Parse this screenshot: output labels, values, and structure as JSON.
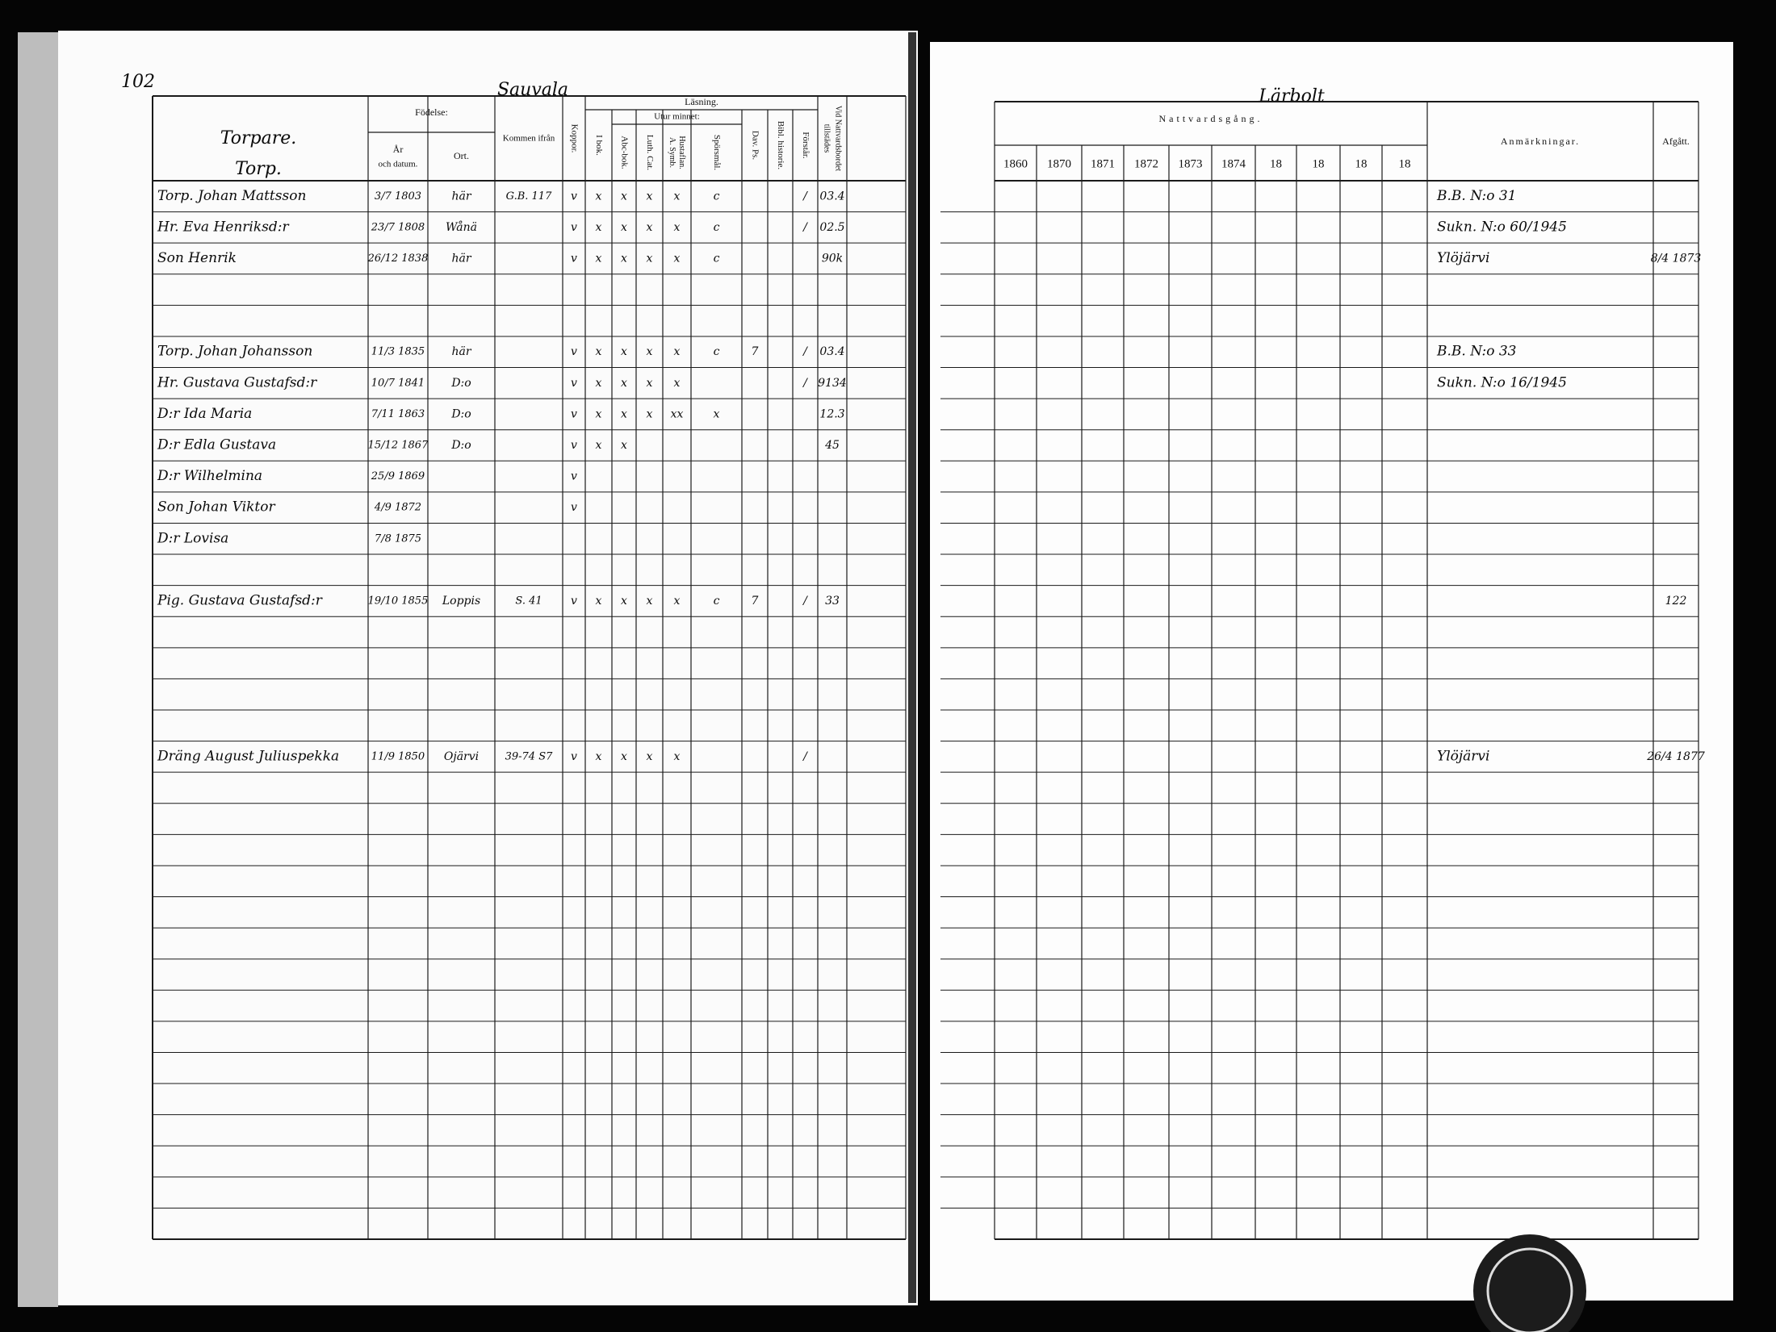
{
  "left_page": {
    "page_number": "102",
    "heading": "Torpare.",
    "subheading": "Torp.",
    "village": "Sauvala",
    "headers": {
      "birth": "Födelse:",
      "birth_date_1": "År",
      "birth_date_2": "och datum.",
      "birth_place": "Ort.",
      "came_from": "Kommen ifrån",
      "smallpox": "Koppor.",
      "reading": "Läsning.",
      "in_book": "I bok.",
      "by_heart": "Utur minnet:",
      "abc": "Abc-bok.",
      "catechism": "Luth. Cat.",
      "symbols_1": "Hustaflan.",
      "symbols_2": "A. Symb.",
      "questions": "Spörsmål.",
      "psalms": "Dav. Ps.",
      "bible_history": "Bibl. historie.",
      "understands": "Förstår.",
      "communion_1": "Vid Nattvardsbordet",
      "communion_2": "tillstädes"
    },
    "rows": [
      {
        "name": "Torp. Johan Mattsson",
        "born": "3/7 1803",
        "place": "här",
        "from": "G.B. 117",
        "smallpox": "v",
        "in_book": "x",
        "abc": "x",
        "catechism": "x",
        "symbols": "x",
        "questions": "c",
        "understands": "/",
        "communion": "03.4"
      },
      {
        "name": "Hr. Eva Henriksd:r",
        "born": "23/7 1808",
        "place": "Wånä",
        "smallpox": "v",
        "in_book": "x",
        "abc": "x",
        "catechism": "x",
        "symbols": "x",
        "questions": "c",
        "understands": "/",
        "communion": "02.5"
      },
      {
        "name": "Son Henrik",
        "born": "26/12 1838",
        "place": "här",
        "smallpox": "v",
        "in_book": "x",
        "abc": "x",
        "catechism": "x",
        "symbols": "x",
        "questions": "c",
        "communion": "90k"
      },
      {
        "name": "Torp. Johan Johansson",
        "born": "11/3 1835",
        "place": "här",
        "smallpox": "v",
        "in_book": "x",
        "abc": "x",
        "catechism": "x",
        "symbols": "x",
        "questions": "c",
        "psalms": "7",
        "understands": "/",
        "communion": "03.4"
      },
      {
        "name": "Hr. Gustava Gustafsd:r",
        "born": "10/7 1841",
        "place": "D:o",
        "smallpox": "v",
        "in_book": "x",
        "abc": "x",
        "catechism": "x",
        "symbols": "x",
        "understands": "/",
        "communion": "9134"
      },
      {
        "name": "D:r Ida Maria",
        "born": "7/11 1863",
        "place": "D:o",
        "smallpox": "v",
        "in_book": "x",
        "abc": "x",
        "catechism": "x",
        "symbols": "xx",
        "questions": "x",
        "communion": "12.3"
      },
      {
        "name": "D:r Edla Gustava",
        "born": "15/12 1867",
        "place": "D:o",
        "smallpox": "v",
        "in_book": "x",
        "abc": "x",
        "communion": "45"
      },
      {
        "name": "D:r Wilhelmina",
        "born": "25/9 1869",
        "smallpox": "v"
      },
      {
        "name": "Son Johan Viktor",
        "born": "4/9 1872",
        "smallpox": "v"
      },
      {
        "name": "D:r Lovisa",
        "born": "7/8 1875"
      },
      {
        "name": "Pig. Gustava Gustafsd:r",
        "born": "19/10 1855",
        "place": "Loppis",
        "from": "S. 41",
        "smallpox": "v",
        "in_book": "x",
        "abc": "x",
        "catechism": "x",
        "symbols": "x",
        "questions": "c",
        "psalms": "7",
        "understands": "/",
        "communion": "33"
      },
      {
        "name": "Dräng August Juliuspekka",
        "born": "11/9 1850",
        "place": "Ojärvi",
        "from": "39-74 S7",
        "smallpox": "v",
        "in_book": "x",
        "abc": "x",
        "catechism": "x",
        "symbols": "x",
        "understands": "/"
      }
    ]
  },
  "right_page": {
    "village": "Lärbolt",
    "headers": {
      "communion": "Nattvardsgång.",
      "remarks": "Anmärkningar.",
      "departed": "Afgått."
    },
    "years": [
      "1860",
      "1870",
      "1871",
      "1872",
      "1873",
      "1874",
      "18",
      "18",
      "18",
      "18"
    ],
    "rows": [
      {
        "remarks": "B.B. N:o 31"
      },
      {
        "remarks": "Sukn. N:o 60/1945"
      },
      {
        "remarks": "Ylöjärvi",
        "departed": "8/4 1873"
      },
      {
        "remarks": "B.B. N:o 33"
      },
      {
        "remarks": "Sukn. N:o 16/1945"
      },
      {
        "departed": "122"
      },
      {
        "remarks": "Ylöjärvi",
        "departed": "26/4 1877"
      }
    ]
  }
}
